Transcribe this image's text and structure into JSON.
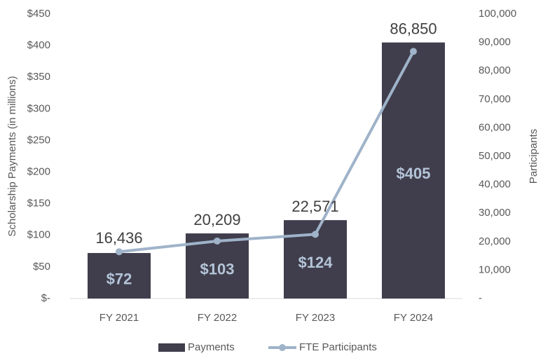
{
  "chart_data": {
    "type": "bar-line",
    "categories": [
      "FY 2021",
      "FY 2022",
      "FY 2023",
      "FY 2024"
    ],
    "series": [
      {
        "name": "Payments",
        "type": "bar",
        "color": "#403e4c",
        "values": [
          72,
          103,
          124,
          405
        ],
        "value_labels": [
          "$72",
          "$103",
          "$124",
          "$405"
        ]
      },
      {
        "name": "FTE Participants",
        "type": "line",
        "axis": "y2",
        "color": "#9fb3c9",
        "values": [
          16436,
          20209,
          22571,
          86850
        ],
        "value_labels": [
          "16,436",
          "20,209",
          "22,571",
          "86,850"
        ]
      }
    ],
    "ylabel": "Scholarship Payments (in millions)",
    "y2label": "Participants",
    "ylim": [
      0,
      450
    ],
    "yticks": [
      {
        "value": 0,
        "label": "$-"
      },
      {
        "value": 50,
        "label": "$50"
      },
      {
        "value": 100,
        "label": "$100"
      },
      {
        "value": 150,
        "label": "$150"
      },
      {
        "value": 200,
        "label": "$200"
      },
      {
        "value": 250,
        "label": "$250"
      },
      {
        "value": 300,
        "label": "$300"
      },
      {
        "value": 350,
        "label": "$350"
      },
      {
        "value": 400,
        "label": "$400"
      },
      {
        "value": 450,
        "label": "$450"
      }
    ],
    "y2lim": [
      0,
      100000
    ],
    "y2ticks": [
      {
        "value": 0,
        "label": "-"
      },
      {
        "value": 10000,
        "label": "10,000"
      },
      {
        "value": 20000,
        "label": "20,000"
      },
      {
        "value": 30000,
        "label": "30,000"
      },
      {
        "value": 40000,
        "label": "40,000"
      },
      {
        "value": 50000,
        "label": "50,000"
      },
      {
        "value": 60000,
        "label": "60,000"
      },
      {
        "value": 70000,
        "label": "70,000"
      },
      {
        "value": 80000,
        "label": "80,000"
      },
      {
        "value": 90000,
        "label": "90,000"
      },
      {
        "value": 100000,
        "label": "100,000"
      }
    ],
    "legend": "bottom"
  }
}
